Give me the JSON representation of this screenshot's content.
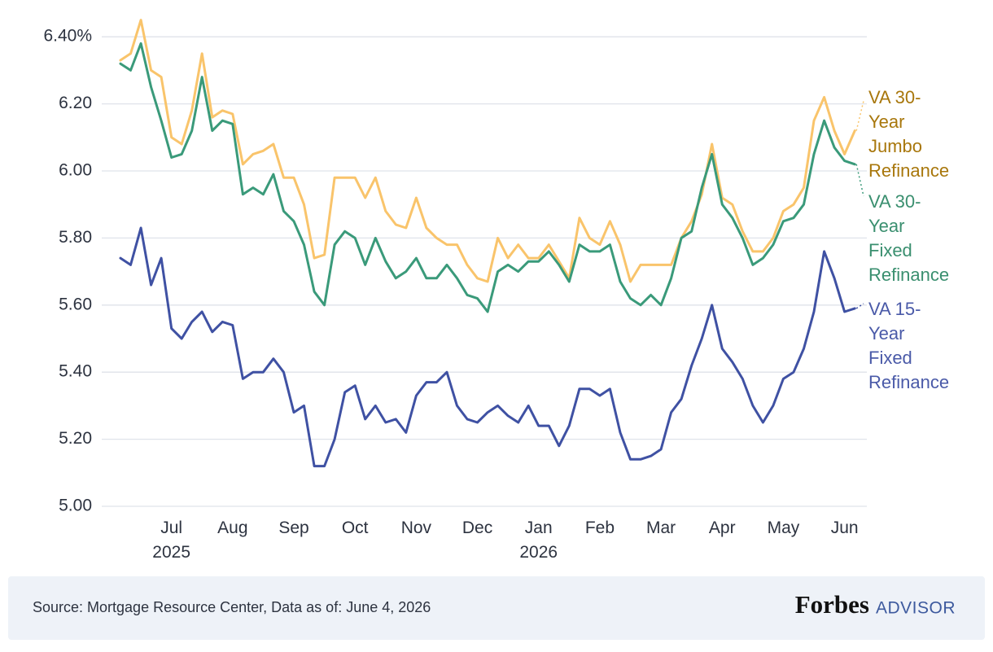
{
  "chart_data": {
    "type": "line",
    "categories": [
      null,
      null,
      null,
      null,
      null,
      "Jul 2025",
      null,
      null,
      null,
      null,
      null,
      "Aug",
      null,
      null,
      null,
      null,
      null,
      "Sep",
      null,
      null,
      null,
      null,
      null,
      "Oct",
      null,
      null,
      null,
      null,
      null,
      "Nov",
      null,
      null,
      null,
      null,
      null,
      "Dec",
      null,
      null,
      null,
      null,
      null,
      "Jan 2026",
      null,
      null,
      null,
      null,
      null,
      "Feb",
      null,
      null,
      null,
      null,
      null,
      "Mar",
      null,
      null,
      null,
      null,
      null,
      "Apr",
      null,
      null,
      null,
      null,
      null,
      "May",
      null,
      null,
      null,
      null,
      null,
      "Jun",
      null
    ],
    "series": [
      {
        "name": "VA 30-Year Jumbo Refinance",
        "color": "#f9c46b",
        "label_color": "#a8770c",
        "values": [
          6.33,
          6.35,
          6.45,
          6.3,
          6.28,
          6.1,
          6.08,
          6.18,
          6.35,
          6.16,
          6.18,
          6.17,
          6.02,
          6.05,
          6.06,
          6.08,
          5.98,
          5.98,
          5.9,
          5.74,
          5.75,
          5.98,
          5.98,
          5.98,
          5.92,
          5.98,
          5.88,
          5.84,
          5.83,
          5.92,
          5.83,
          5.8,
          5.78,
          5.78,
          5.72,
          5.68,
          5.67,
          5.8,
          5.74,
          5.78,
          5.74,
          5.74,
          5.78,
          5.73,
          5.68,
          5.86,
          5.8,
          5.78,
          5.85,
          5.78,
          5.67,
          5.72,
          5.72,
          5.72,
          5.72,
          5.8,
          5.85,
          5.93,
          6.08,
          5.92,
          5.9,
          5.82,
          5.76,
          5.76,
          5.8,
          5.88,
          5.9,
          5.95,
          6.15,
          6.22,
          6.12,
          6.05,
          6.12
        ]
      },
      {
        "name": "VA 30-Year Fixed Refinance",
        "color": "#3a9a7a",
        "label_color": "#3a8f6f",
        "values": [
          6.32,
          6.3,
          6.38,
          6.25,
          6.15,
          6.04,
          6.05,
          6.12,
          6.28,
          6.12,
          6.15,
          6.14,
          5.93,
          5.95,
          5.93,
          5.99,
          5.88,
          5.85,
          5.78,
          5.64,
          5.6,
          5.78,
          5.82,
          5.8,
          5.72,
          5.8,
          5.73,
          5.68,
          5.7,
          5.74,
          5.68,
          5.68,
          5.72,
          5.68,
          5.63,
          5.62,
          5.58,
          5.7,
          5.72,
          5.7,
          5.73,
          5.73,
          5.76,
          5.72,
          5.67,
          5.78,
          5.76,
          5.76,
          5.78,
          5.67,
          5.62,
          5.6,
          5.63,
          5.6,
          5.68,
          5.8,
          5.82,
          5.95,
          6.05,
          5.9,
          5.86,
          5.8,
          5.72,
          5.74,
          5.78,
          5.85,
          5.86,
          5.9,
          6.05,
          6.15,
          6.07,
          6.03,
          6.02
        ]
      },
      {
        "name": "VA 15-Year Fixed Refinance",
        "color": "#3f51a3",
        "label_color": "#4a5aa8",
        "values": [
          5.74,
          5.72,
          5.83,
          5.66,
          5.74,
          5.53,
          5.5,
          5.55,
          5.58,
          5.52,
          5.55,
          5.54,
          5.38,
          5.4,
          5.4,
          5.44,
          5.4,
          5.28,
          5.3,
          5.12,
          5.12,
          5.2,
          5.34,
          5.36,
          5.26,
          5.3,
          5.25,
          5.26,
          5.22,
          5.33,
          5.37,
          5.37,
          5.4,
          5.3,
          5.26,
          5.25,
          5.28,
          5.3,
          5.27,
          5.25,
          5.3,
          5.24,
          5.24,
          5.18,
          5.24,
          5.35,
          5.35,
          5.33,
          5.35,
          5.22,
          5.14,
          5.14,
          5.15,
          5.17,
          5.28,
          5.32,
          5.42,
          5.5,
          5.6,
          5.47,
          5.43,
          5.38,
          5.3,
          5.25,
          5.3,
          5.38,
          5.4,
          5.47,
          5.58,
          5.76,
          5.68,
          5.58,
          5.59
        ]
      }
    ],
    "ylim": [
      5.0,
      6.45
    ],
    "yticks": [
      {
        "value": 5.0,
        "label": "5.00"
      },
      {
        "value": 5.2,
        "label": "5.20"
      },
      {
        "value": 5.4,
        "label": "5.40"
      },
      {
        "value": 5.6,
        "label": "5.60"
      },
      {
        "value": 5.8,
        "label": "5.80"
      },
      {
        "value": 6.0,
        "label": "6.00"
      },
      {
        "value": 6.2,
        "label": "6.20"
      },
      {
        "value": 6.4,
        "label": "6.40%"
      }
    ],
    "grid": true,
    "source": "Source: Mortgage Resource Center, Data as of: June 4, 2026",
    "brand": "Forbes",
    "brand_suffix": "ADVISOR"
  }
}
